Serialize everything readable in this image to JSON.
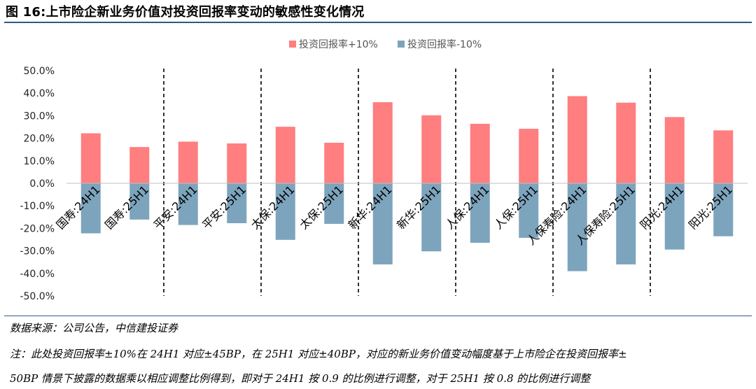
{
  "title": "图 16:上市险企新业务价值对投资回报率变动的敏感性变化情况",
  "source": "数据来源：公司公告，中信建投证券",
  "note_line1": "注：此处投资回报率±10%在 24H1 对应±45BP，在 25H1 对应±40BP，对应的新业务价值变动幅度基于上市险企在投资回报率±",
  "note_line2": "50BP 情景下披露的数据乘以相应调整比例得到，即对于 24H1 按 0.9 的比例进行调整，对于 25H1 按 0.8 的比例进行调整",
  "colors": {
    "positive": "#ff7e80",
    "negative": "#7da4bd"
  },
  "chart_data": {
    "type": "bar",
    "categories": [
      "国寿:24H1",
      "国寿:25H1",
      "平安:24H1",
      "平安:25H1",
      "太保:24H1",
      "太保:25H1",
      "新华:24H1",
      "新华:25H1",
      "人保:24H1",
      "人保:25H1",
      "人保寿险:24H1",
      "人保寿险:25H1",
      "阳光:24H1",
      "阳光:25H1"
    ],
    "series": [
      {
        "name": "投资回报率+10%",
        "values": [
          22.2,
          16.1,
          18.5,
          17.7,
          25.1,
          18.0,
          36.0,
          30.2,
          26.4,
          24.2,
          38.7,
          35.8,
          29.4,
          23.5
        ]
      },
      {
        "name": "投资回报率-10%",
        "values": [
          -22.2,
          -16.1,
          -18.5,
          -17.7,
          -25.1,
          -18.0,
          -36.0,
          -30.2,
          -26.4,
          -24.2,
          -39.0,
          -36.0,
          -29.4,
          -23.5
        ]
      }
    ],
    "ylim": [
      -50,
      50
    ],
    "yticks": [
      50,
      40,
      30,
      20,
      10,
      0,
      -10,
      -20,
      -30,
      -40,
      -50
    ],
    "ytick_labels": [
      "50.0%",
      "40.0%",
      "30.0%",
      "20.0%",
      "10.0%",
      "0.0%",
      "-10.0%",
      "-20.0%",
      "-30.0%",
      "-40.0%",
      "-50.0%"
    ],
    "group_separators_after": [
      1,
      3,
      5,
      7,
      9,
      11
    ],
    "legend_position": "top-center",
    "grid": false,
    "xlabel": "",
    "ylabel": ""
  }
}
